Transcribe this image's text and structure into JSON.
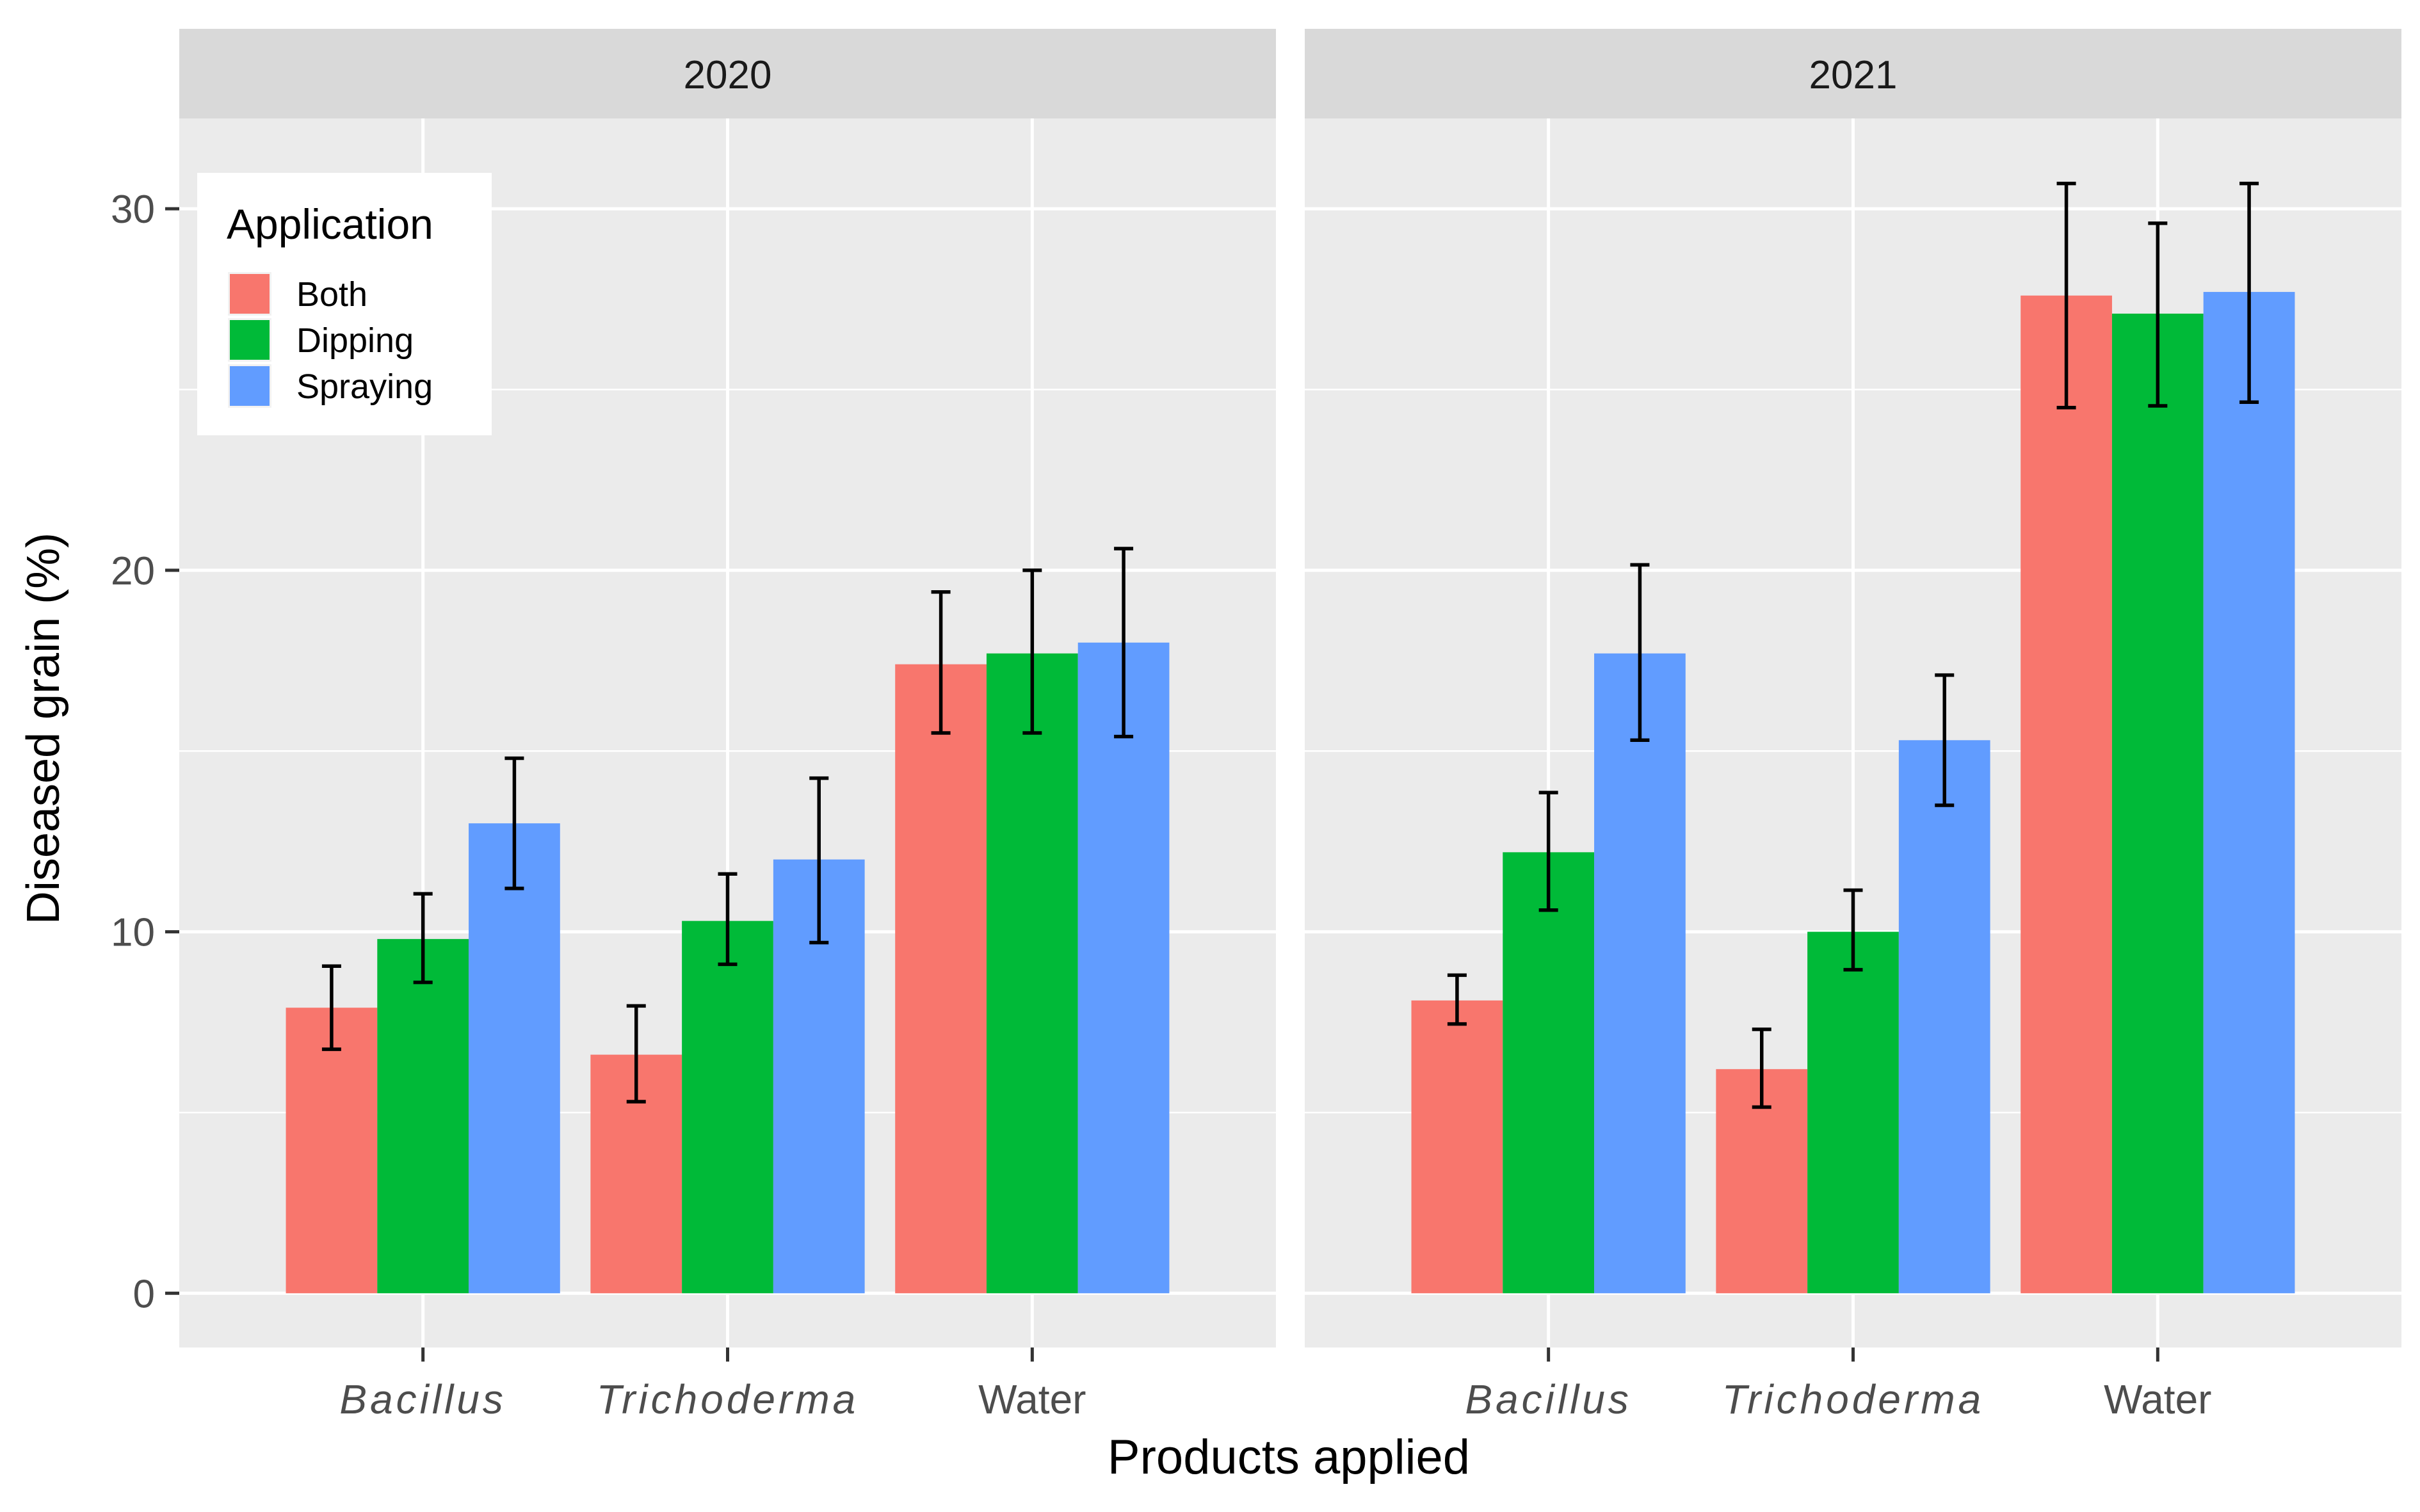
{
  "chart_data": {
    "type": "bar",
    "xlabel": "Products applied",
    "ylabel": "Diseased grain (%)",
    "ylim": [
      -1.5,
      32.5
    ],
    "yticks": [
      0,
      10,
      20,
      30
    ],
    "grid": true,
    "legend": {
      "title": "Application",
      "position": "top-left",
      "entries": [
        {
          "name": "Both",
          "color": "#F8766D"
        },
        {
          "name": "Dipping",
          "color": "#00BA38"
        },
        {
          "name": "Spraying",
          "color": "#619CFF"
        }
      ]
    },
    "categories": [
      {
        "label": "Bacillus",
        "italic": true
      },
      {
        "label": "Trichoderma",
        "italic": true
      },
      {
        "label": "Water",
        "italic": false
      }
    ],
    "panels": [
      {
        "title": "2020",
        "series": [
          {
            "name": "Both",
            "values": [
              7.9,
              6.6,
              17.4
            ],
            "err_low": [
              6.75,
              5.3,
              15.5
            ],
            "err_high": [
              9.05,
              7.95,
              19.4
            ]
          },
          {
            "name": "Dipping",
            "values": [
              9.8,
              10.3,
              17.7
            ],
            "err_low": [
              8.6,
              9.1,
              15.5
            ],
            "err_high": [
              11.05,
              11.6,
              20.0
            ]
          },
          {
            "name": "Spraying",
            "values": [
              13.0,
              12.0,
              18.0
            ],
            "err_low": [
              11.2,
              9.7,
              15.4
            ],
            "err_high": [
              14.8,
              14.25,
              20.6
            ]
          }
        ]
      },
      {
        "title": "2021",
        "series": [
          {
            "name": "Both",
            "values": [
              8.1,
              6.2,
              27.6
            ],
            "err_low": [
              7.45,
              5.15,
              24.5
            ],
            "err_high": [
              8.8,
              7.3,
              30.7
            ]
          },
          {
            "name": "Dipping",
            "values": [
              12.2,
              10.0,
              27.1
            ],
            "err_low": [
              10.6,
              8.95,
              24.55
            ],
            "err_high": [
              13.85,
              11.15,
              29.6
            ]
          },
          {
            "name": "Spraying",
            "values": [
              17.7,
              15.3,
              27.7
            ],
            "err_low": [
              15.3,
              13.5,
              24.65
            ],
            "err_high": [
              20.15,
              17.1,
              30.7
            ]
          }
        ]
      }
    ]
  }
}
